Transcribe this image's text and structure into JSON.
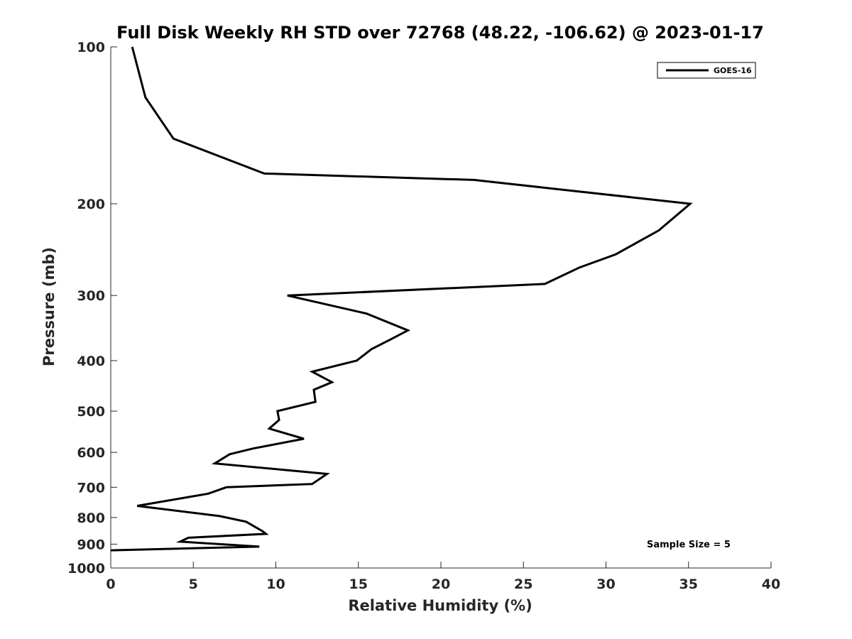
{
  "chart_data": {
    "type": "line",
    "title": "Full Disk Weekly RH STD over 72768 (48.22, -106.62) @ 2023-01-17",
    "xlabel": "Relative Humidity (%)",
    "ylabel": "Pressure (mb)",
    "xlim": [
      0,
      40
    ],
    "ylim": [
      100,
      1000
    ],
    "y_scale": "log",
    "y_reversed": true,
    "grid": false,
    "legend_position": "top-right",
    "x_ticks": [
      0,
      5,
      10,
      15,
      20,
      25,
      30,
      35,
      40
    ],
    "x_tick_labels": [
      "0",
      "5",
      "10",
      "15",
      "20",
      "25",
      "30",
      "35",
      "40"
    ],
    "y_ticks": [
      100,
      200,
      300,
      400,
      500,
      600,
      700,
      800,
      900,
      1000
    ],
    "y_tick_labels": [
      "100",
      "200",
      "300",
      "400",
      "500",
      "600",
      "700",
      "800",
      "900",
      "1000"
    ],
    "series": [
      {
        "name": "GOES-16",
        "color": "#000000",
        "points": [
          {
            "x": 1.3,
            "p": 100
          },
          {
            "x": 2.1,
            "p": 125
          },
          {
            "x": 3.8,
            "p": 150
          },
          {
            "x": 9.3,
            "p": 175
          },
          {
            "x": 22.0,
            "p": 180
          },
          {
            "x": 35.1,
            "p": 200
          },
          {
            "x": 33.2,
            "p": 225
          },
          {
            "x": 30.6,
            "p": 250
          },
          {
            "x": 28.4,
            "p": 265
          },
          {
            "x": 26.3,
            "p": 285
          },
          {
            "x": 10.7,
            "p": 300
          },
          {
            "x": 15.5,
            "p": 325
          },
          {
            "x": 18.0,
            "p": 350
          },
          {
            "x": 16.9,
            "p": 365
          },
          {
            "x": 15.8,
            "p": 380
          },
          {
            "x": 14.9,
            "p": 400
          },
          {
            "x": 12.2,
            "p": 420
          },
          {
            "x": 13.4,
            "p": 440
          },
          {
            "x": 12.3,
            "p": 455
          },
          {
            "x": 12.4,
            "p": 480
          },
          {
            "x": 10.1,
            "p": 500
          },
          {
            "x": 10.2,
            "p": 520
          },
          {
            "x": 9.6,
            "p": 540
          },
          {
            "x": 11.7,
            "p": 565
          },
          {
            "x": 8.6,
            "p": 590
          },
          {
            "x": 7.2,
            "p": 605
          },
          {
            "x": 6.3,
            "p": 630
          },
          {
            "x": 13.1,
            "p": 660
          },
          {
            "x": 12.2,
            "p": 690
          },
          {
            "x": 7.0,
            "p": 700
          },
          {
            "x": 5.9,
            "p": 720
          },
          {
            "x": 1.6,
            "p": 760
          },
          {
            "x": 6.6,
            "p": 795
          },
          {
            "x": 8.2,
            "p": 815
          },
          {
            "x": 9.2,
            "p": 850
          },
          {
            "x": 9.4,
            "p": 860
          },
          {
            "x": 4.7,
            "p": 875
          },
          {
            "x": 4.2,
            "p": 890
          },
          {
            "x": 9.0,
            "p": 910
          },
          {
            "x": 0.0,
            "p": 925
          }
        ]
      }
    ],
    "annotations": {
      "sample_size": "Sample Size = 5"
    }
  }
}
